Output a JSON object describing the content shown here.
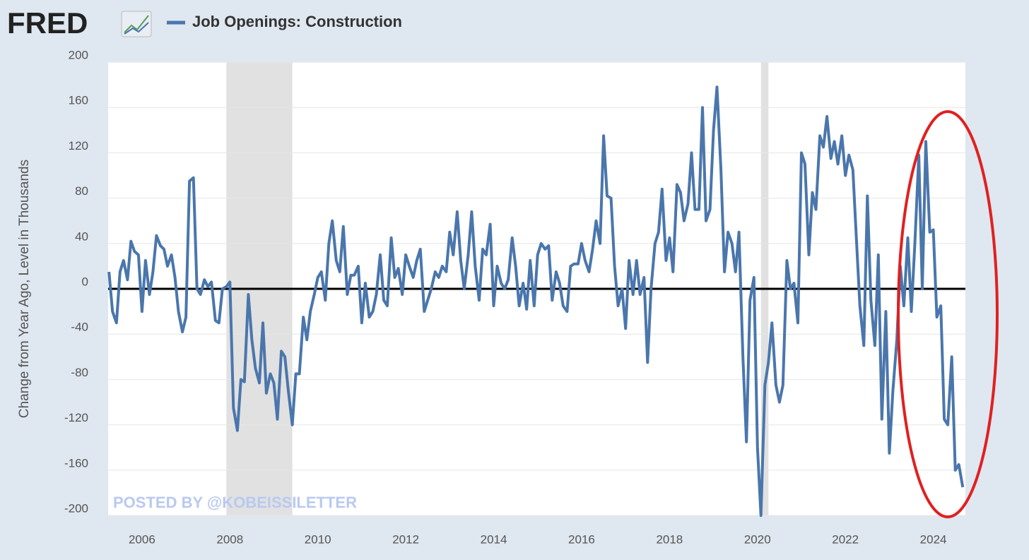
{
  "chart_data": {
    "type": "line",
    "brand": "FRED",
    "y_label": "Change from Year Ago, Level in Thousands",
    "watermark": "POSTED BY @KOBEISSILETTER",
    "grid": true,
    "xlim": [
      2005.23,
      2024.73
    ],
    "xticks": [
      2006,
      2008,
      2010,
      2012,
      2014,
      2016,
      2018,
      2020,
      2022,
      2024
    ],
    "ylim": [
      -200,
      200
    ],
    "yticks": [
      -200,
      -160,
      -120,
      -80,
      -40,
      0,
      40,
      80,
      120,
      160,
      200
    ],
    "recessions": [
      [
        2007.92,
        2009.42
      ],
      [
        2020.08,
        2020.25
      ]
    ],
    "x": [
      2005.25,
      2005.33,
      2005.42,
      2005.5,
      2005.58,
      2005.67,
      2005.75,
      2005.83,
      2005.92,
      2006.0,
      2006.08,
      2006.17,
      2006.25,
      2006.33,
      2006.42,
      2006.5,
      2006.58,
      2006.67,
      2006.75,
      2006.83,
      2006.92,
      2007.0,
      2007.08,
      2007.17,
      2007.25,
      2007.33,
      2007.42,
      2007.5,
      2007.58,
      2007.67,
      2007.75,
      2007.83,
      2007.92,
      2008.0,
      2008.08,
      2008.17,
      2008.25,
      2008.33,
      2008.42,
      2008.5,
      2008.58,
      2008.67,
      2008.75,
      2008.83,
      2008.92,
      2009.0,
      2009.08,
      2009.17,
      2009.25,
      2009.33,
      2009.42,
      2009.5,
      2009.58,
      2009.67,
      2009.75,
      2009.83,
      2009.92,
      2010.0,
      2010.08,
      2010.17,
      2010.25,
      2010.33,
      2010.42,
      2010.5,
      2010.58,
      2010.67,
      2010.75,
      2010.83,
      2010.92,
      2011.0,
      2011.08,
      2011.17,
      2011.25,
      2011.33,
      2011.42,
      2011.5,
      2011.58,
      2011.67,
      2011.75,
      2011.83,
      2011.92,
      2012.0,
      2012.08,
      2012.17,
      2012.25,
      2012.33,
      2012.42,
      2012.5,
      2012.58,
      2012.67,
      2012.75,
      2012.83,
      2012.92,
      2013.0,
      2013.08,
      2013.17,
      2013.25,
      2013.33,
      2013.42,
      2013.5,
      2013.58,
      2013.67,
      2013.75,
      2013.83,
      2013.92,
      2014.0,
      2014.08,
      2014.17,
      2014.25,
      2014.33,
      2014.42,
      2014.5,
      2014.58,
      2014.67,
      2014.75,
      2014.83,
      2014.92,
      2015.0,
      2015.08,
      2015.17,
      2015.25,
      2015.33,
      2015.42,
      2015.5,
      2015.58,
      2015.67,
      2015.75,
      2015.83,
      2015.92,
      2016.0,
      2016.08,
      2016.17,
      2016.25,
      2016.33,
      2016.42,
      2016.5,
      2016.58,
      2016.67,
      2016.75,
      2016.83,
      2016.92,
      2017.0,
      2017.08,
      2017.17,
      2017.25,
      2017.33,
      2017.42,
      2017.5,
      2017.58,
      2017.67,
      2017.75,
      2017.83,
      2017.92,
      2018.0,
      2018.08,
      2018.17,
      2018.25,
      2018.33,
      2018.42,
      2018.5,
      2018.58,
      2018.67,
      2018.75,
      2018.83,
      2018.92,
      2019.0,
      2019.08,
      2019.17,
      2019.25,
      2019.33,
      2019.42,
      2019.5,
      2019.58,
      2019.67,
      2019.75,
      2019.83,
      2019.92,
      2020.0,
      2020.08,
      2020.17,
      2020.25,
      2020.33,
      2020.42,
      2020.5,
      2020.58,
      2020.67,
      2020.75,
      2020.83,
      2020.92,
      2021.0,
      2021.08,
      2021.17,
      2021.25,
      2021.33,
      2021.42,
      2021.5,
      2021.58,
      2021.67,
      2021.75,
      2021.83,
      2021.92,
      2022.0,
      2022.08,
      2022.17,
      2022.25,
      2022.33,
      2022.42,
      2022.5,
      2022.58,
      2022.67,
      2022.75,
      2022.83,
      2022.92,
      2023.0,
      2023.08,
      2023.17,
      2023.25,
      2023.33,
      2023.42,
      2023.5,
      2023.58,
      2023.67,
      2023.75,
      2023.83,
      2023.92,
      2024.0,
      2024.08,
      2024.17,
      2024.25,
      2024.33,
      2024.42,
      2024.5,
      2024.58,
      2024.67
    ],
    "series": [
      {
        "name": "Job Openings: Construction",
        "color": "#4a76ac",
        "values": [
          15,
          -20,
          -30,
          15,
          25,
          8,
          42,
          33,
          30,
          -20,
          25,
          -5,
          15,
          47,
          38,
          35,
          20,
          30,
          10,
          -20,
          -38,
          -25,
          95,
          98,
          0,
          -5,
          8,
          2,
          6,
          -28,
          -30,
          0,
          2,
          6,
          -105,
          -125,
          -80,
          -82,
          -5,
          -45,
          -70,
          -83,
          -30,
          -92,
          -75,
          -83,
          -115,
          -55,
          -60,
          -90,
          -120,
          -75,
          -75,
          -25,
          -45,
          -20,
          -5,
          10,
          15,
          -10,
          40,
          60,
          25,
          15,
          55,
          -5,
          12,
          12,
          20,
          -30,
          5,
          -25,
          -20,
          -5,
          30,
          -10,
          -15,
          45,
          10,
          18,
          -5,
          30,
          20,
          10,
          25,
          35,
          -20,
          -10,
          0,
          15,
          10,
          20,
          15,
          50,
          30,
          68,
          25,
          0,
          30,
          68,
          20,
          -10,
          35,
          30,
          57,
          -15,
          20,
          5,
          0,
          8,
          45,
          20,
          -15,
          5,
          -18,
          25,
          -15,
          30,
          40,
          35,
          38,
          -10,
          15,
          5,
          -15,
          -20,
          20,
          22,
          22,
          40,
          25,
          15,
          35,
          60,
          40,
          135,
          82,
          80,
          20,
          -15,
          0,
          -35,
          25,
          -5,
          25,
          -5,
          10,
          -65,
          0,
          40,
          50,
          88,
          25,
          45,
          15,
          92,
          85,
          60,
          75,
          120,
          70,
          70,
          160,
          60,
          70,
          140,
          178,
          105,
          15,
          50,
          40,
          15,
          50,
          -60,
          -135,
          -10,
          10,
          -140,
          -200,
          -85,
          -65,
          -30,
          -85,
          -100,
          -85,
          25,
          0,
          5,
          -30,
          120,
          110,
          30,
          85,
          70,
          135,
          125,
          152,
          115,
          130,
          110,
          135,
          100,
          118,
          105,
          45,
          -15,
          -50,
          82,
          -10,
          -50,
          30,
          -115,
          -20,
          -145,
          -90,
          -45,
          20,
          -15,
          45,
          -20,
          40,
          118,
          0,
          130,
          50,
          52,
          -25,
          -15,
          -115,
          -120,
          -60,
          -160,
          -155,
          -175
        ]
      }
    ]
  }
}
